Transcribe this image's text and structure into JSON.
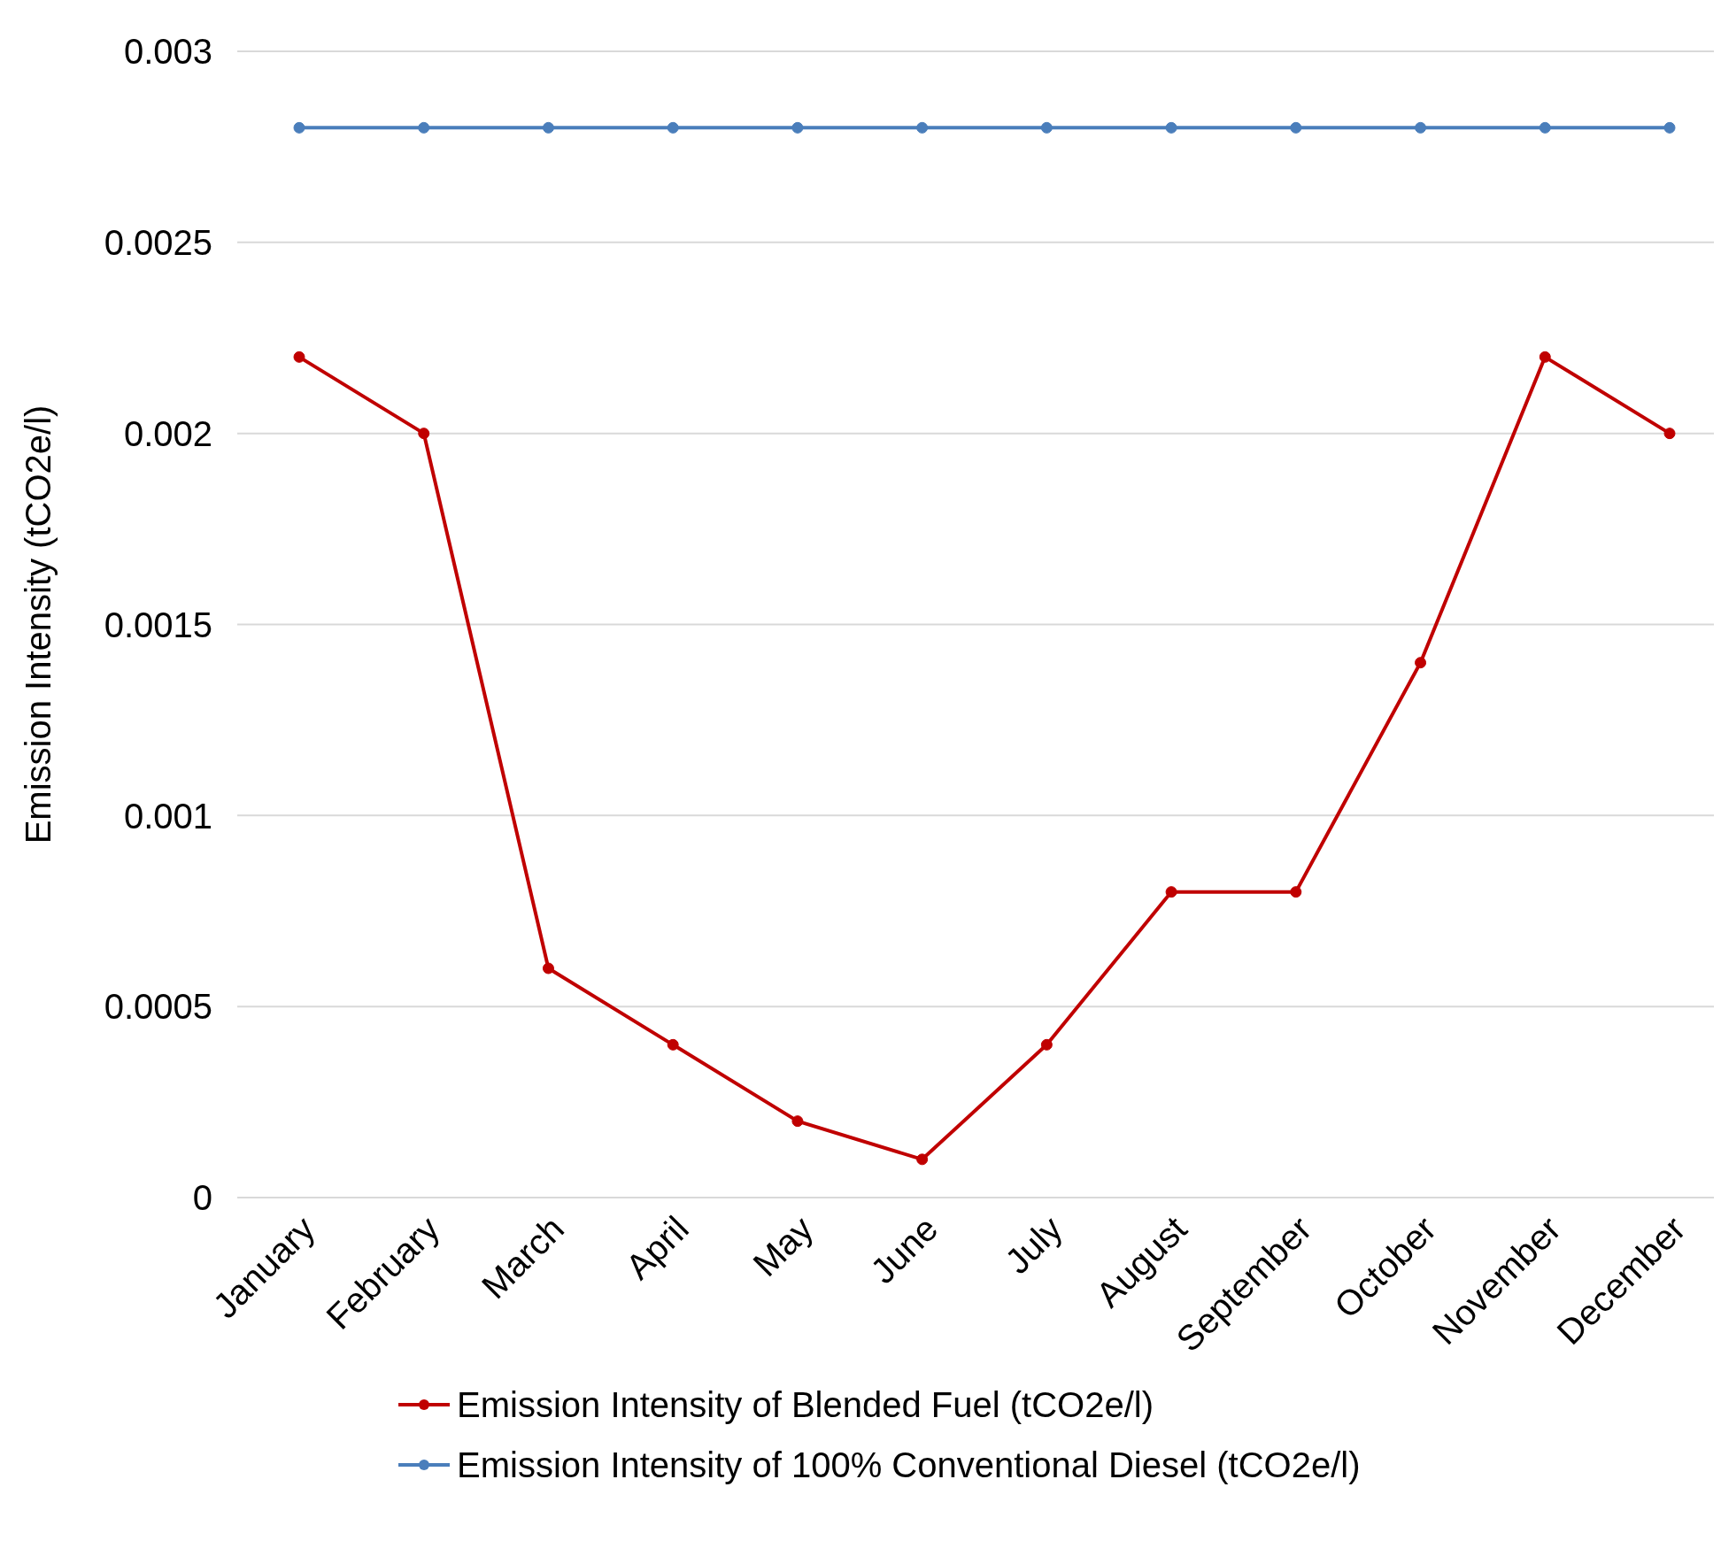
{
  "chart_data": {
    "type": "line",
    "ylabel": "Emission Intensity (tCO2e/l)",
    "categories": [
      "January",
      "February",
      "March",
      "April",
      "May",
      "June",
      "July",
      "August",
      "September",
      "October",
      "November",
      "December"
    ],
    "series": [
      {
        "name": "Emission Intensity of Blended Fuel (tCO2e/l)",
        "color": "#c00000",
        "values": [
          0.0022,
          0.002,
          0.0006,
          0.0004,
          0.0002,
          0.0001,
          0.0004,
          0.0008,
          0.0008,
          0.0014,
          0.0022,
          0.002
        ]
      },
      {
        "name": "Emission Intensity of 100% Conventional Diesel (tCO2e/l)",
        "color": "#4a7ebb",
        "values": [
          0.0028,
          0.0028,
          0.0028,
          0.0028,
          0.0028,
          0.0028,
          0.0028,
          0.0028,
          0.0028,
          0.0028,
          0.0028,
          0.0028
        ]
      }
    ],
    "ylim": [
      0,
      0.003
    ],
    "yticks": [
      0,
      0.0005,
      0.001,
      0.0015,
      0.002,
      0.0025,
      0.003
    ],
    "grid": "y",
    "legend": "bottom",
    "marker": "circle",
    "line_style": "solid"
  }
}
